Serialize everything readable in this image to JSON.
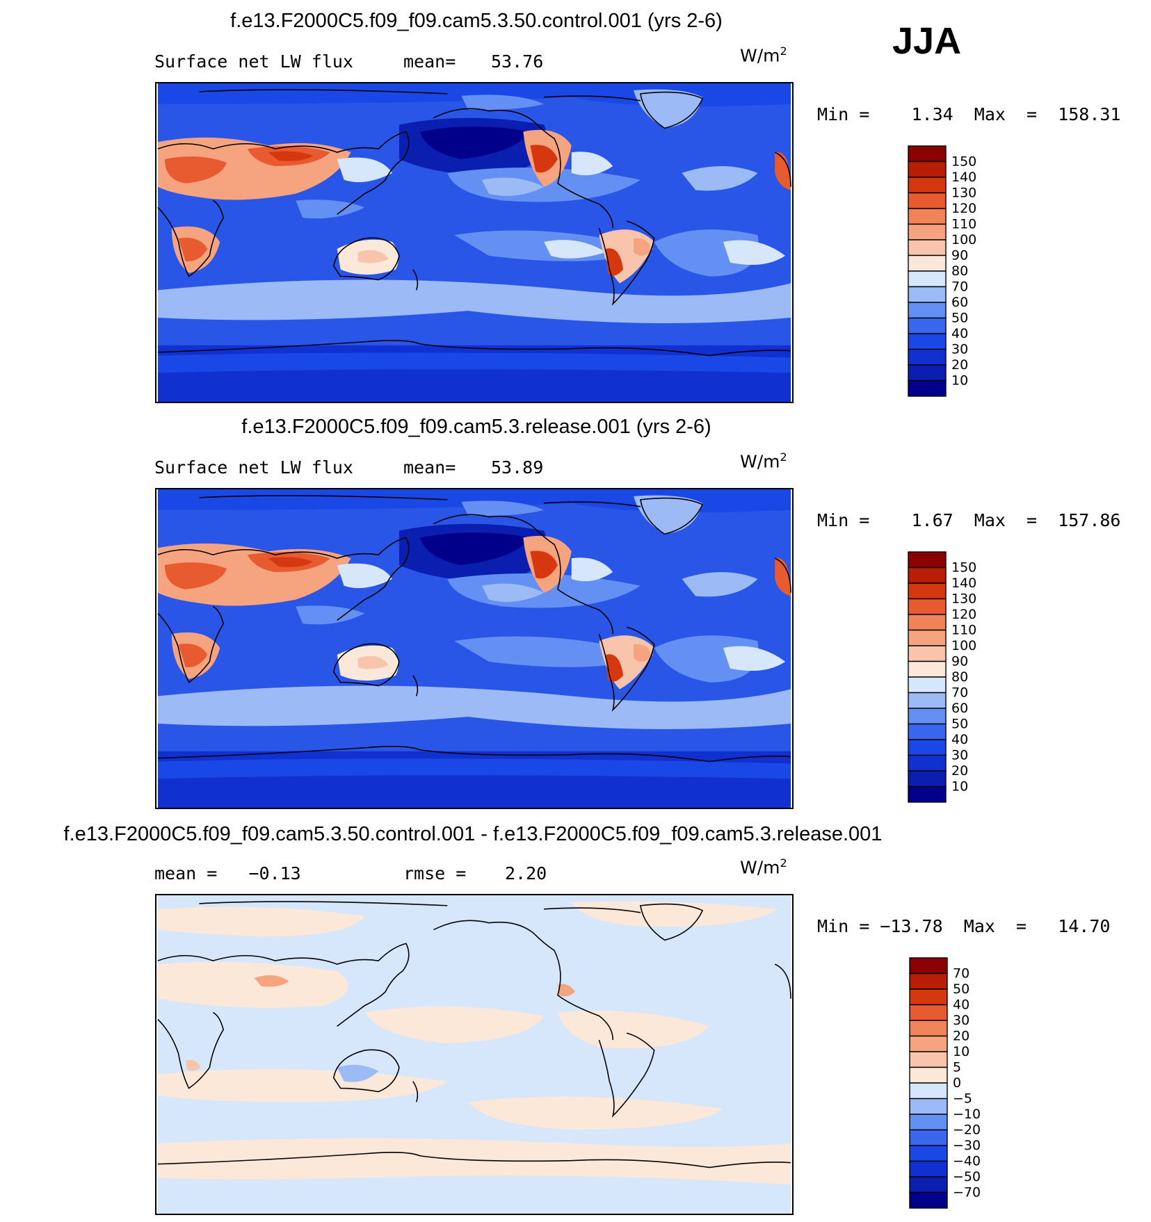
{
  "season": "JJA",
  "panels": [
    {
      "title": "f.e13.F2000C5.f09_f09.cam5.3.50.control.001 (yrs 2-6)",
      "left_label": "Surface net LW flux",
      "stat_label": "mean=",
      "stat_value": "53.76",
      "units_base": "W/m",
      "units_sup": "2",
      "minmax": "Min =    1.34  Max  =  158.31",
      "colorbar": [
        "150",
        "140",
        "130",
        "120",
        "110",
        "100",
        "90",
        "80",
        "70",
        "60",
        "50",
        "40",
        "30",
        "20",
        "10"
      ],
      "palette": "abs"
    },
    {
      "title": "f.e13.F2000C5.f09_f09.cam5.3.release.001 (yrs 2-6)",
      "left_label": "Surface net LW flux",
      "stat_label": "mean=",
      "stat_value": "53.89",
      "units_base": "W/m",
      "units_sup": "2",
      "minmax": "Min =    1.67  Max  =  157.86",
      "colorbar": [
        "150",
        "140",
        "130",
        "120",
        "110",
        "100",
        "90",
        "80",
        "70",
        "60",
        "50",
        "40",
        "30",
        "20",
        "10"
      ],
      "palette": "abs"
    },
    {
      "title": "f.e13.F2000C5.f09_f09.cam5.3.50.control.001 - f.e13.F2000C5.f09_f09.cam5.3.release.001",
      "left_label": "mean =   −0.13",
      "stat_label": "rmse =",
      "stat_value": "2.20",
      "units_base": "W/m",
      "units_sup": "2",
      "minmax": "Min = −13.78  Max  =   14.70",
      "colorbar": [
        "70",
        "50",
        "40",
        "30",
        "20",
        "10",
        "5",
        "0",
        "−5",
        "−10",
        "−20",
        "−30",
        "−40",
        "−50",
        "−70"
      ],
      "palette": "diff"
    }
  ],
  "colors": {
    "abs_palette": [
      "#00008b",
      "#0a1fb0",
      "#1030d0",
      "#1a48e6",
      "#3a66ee",
      "#6390f2",
      "#9bbaf6",
      "#d6e6fb",
      "#fbe8d8",
      "#f8c5ac",
      "#f5a47f",
      "#f08458",
      "#e85a30",
      "#d5380f",
      "#b81d06",
      "#8b0000"
    ],
    "diff_palette": [
      "#00008b",
      "#0a1fb0",
      "#1030d0",
      "#1a48e6",
      "#3a66ee",
      "#6390f2",
      "#9bbaf6",
      "#d6e6fb",
      "#fbe8d8",
      "#f8c5ac",
      "#f5a47f",
      "#f08458",
      "#e85a30",
      "#d5380f",
      "#b81d06",
      "#8b0000"
    ]
  }
}
